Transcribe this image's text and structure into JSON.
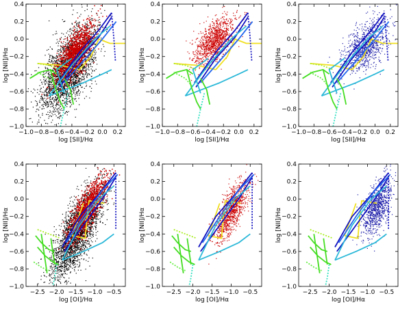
{
  "figure": {
    "background": "#ffffff"
  },
  "colors": {
    "black_points": "#000000",
    "red_points": "#cc0000",
    "blue_points": "#1a1aa8",
    "yellow": "#f0e020",
    "cyan": "#2ab8d8",
    "dark_blue": "#1010c0",
    "mid_blue": "#2266ee",
    "green": "#44dd22",
    "yellow_green": "#aaee22",
    "lime": "#66ee44",
    "teal": "#33e0c0"
  },
  "chart_data": [
    {
      "type": "scatter",
      "panel": "top-left",
      "row": 0,
      "col": 0,
      "xlabel": "log [SII]/Hα",
      "ylabel": "log [NII]/Hα",
      "xlim": [
        -1.0,
        0.3
      ],
      "ylim": [
        -1.0,
        0.4
      ],
      "xticks": [
        -1.0,
        -0.8,
        -0.6,
        -0.4,
        -0.2,
        0.0,
        0.2
      ],
      "xtick_labels": [
        "−1.0",
        "−0.8",
        "−0.6",
        "−0.4",
        "−0.2",
        "0.0",
        "0.2"
      ],
      "yticks": [
        -1.0,
        -0.8,
        -0.6,
        -0.4,
        -0.2,
        0.0,
        0.2,
        0.4
      ],
      "ytick_labels": [
        "−1.0",
        "−0.8",
        "−0.6",
        "−0.4",
        "−0.2",
        "0.0",
        "0.2",
        "0.4"
      ],
      "scatter_layers": [
        {
          "color": "black_points",
          "count": 2600,
          "cx": -0.45,
          "cy": -0.35,
          "sx": 0.18,
          "sy": 0.25,
          "rho": 0.6,
          "size": 1.2,
          "seed": 11
        },
        {
          "color": "red_points",
          "count": 1300,
          "cx": -0.35,
          "cy": -0.15,
          "sx": 0.12,
          "sy": 0.16,
          "rho": 0.7,
          "size": 1.5,
          "seed": 12
        }
      ],
      "model_lines": "sii"
    },
    {
      "type": "scatter",
      "panel": "top-middle",
      "row": 0,
      "col": 1,
      "xlabel": "log [SII]/Hα",
      "ylabel": "log [NII]/Hα",
      "xlim": [
        -1.0,
        0.3
      ],
      "ylim": [
        -1.0,
        0.4
      ],
      "xticks": [
        -1.0,
        -0.8,
        -0.6,
        -0.4,
        -0.2,
        0.0,
        0.2
      ],
      "xtick_labels": [
        "−1.0",
        "−0.8",
        "−0.6",
        "−0.4",
        "−0.2",
        "0.0",
        "0.2"
      ],
      "yticks": [
        -1.0,
        -0.8,
        -0.6,
        -0.4,
        -0.2,
        0.0,
        0.2,
        0.4
      ],
      "ytick_labels": [
        "−1.0",
        "−0.8",
        "−0.6",
        "−0.4",
        "−0.2",
        "0.0",
        "0.2",
        "0.4"
      ],
      "scatter_layers": [
        {
          "color": "red_points",
          "count": 1100,
          "cx": -0.32,
          "cy": -0.02,
          "sx": 0.13,
          "sy": 0.14,
          "rho": 0.6,
          "size": 1.2,
          "seed": 21
        }
      ],
      "model_lines": "sii"
    },
    {
      "type": "scatter",
      "panel": "top-right",
      "row": 0,
      "col": 2,
      "xlabel": "log [SII]/Hα",
      "ylabel": "log [NII]/Hα",
      "xlim": [
        -1.0,
        0.3
      ],
      "ylim": [
        -1.0,
        0.4
      ],
      "xticks": [
        -1.0,
        -0.8,
        -0.6,
        -0.4,
        -0.2,
        0.0,
        0.2
      ],
      "xtick_labels": [
        "−1.0",
        "−0.8",
        "−0.6",
        "−0.4",
        "−0.2",
        "0.0",
        "0.2"
      ],
      "yticks": [
        -1.0,
        -0.8,
        -0.6,
        -0.4,
        -0.2,
        0.0,
        0.2,
        0.4
      ],
      "ytick_labels": [
        "−1.0",
        "−0.8",
        "−0.6",
        "−0.4",
        "−0.2",
        "0.0",
        "0.2",
        "0.4"
      ],
      "scatter_layers": [
        {
          "color": "blue_points",
          "count": 900,
          "cx": -0.12,
          "cy": -0.08,
          "sx": 0.15,
          "sy": 0.16,
          "rho": 0.55,
          "size": 1.2,
          "seed": 31
        }
      ],
      "model_lines": "sii"
    },
    {
      "type": "scatter",
      "panel": "bottom-left",
      "row": 1,
      "col": 0,
      "xlabel": "log [OI]/Hα",
      "ylabel": "log [NII]/Hα",
      "xlim": [
        -2.8,
        -0.2
      ],
      "ylim": [
        -1.0,
        0.4
      ],
      "xticks": [
        -2.5,
        -2.0,
        -1.5,
        -1.0,
        -0.5
      ],
      "xtick_labels": [
        "−2.5",
        "−2.0",
        "−1.5",
        "−1.0",
        "−0.5"
      ],
      "yticks": [
        -1.0,
        -0.8,
        -0.6,
        -0.4,
        -0.2,
        0.0,
        0.2,
        0.4
      ],
      "ytick_labels": [
        "−1.0",
        "−0.8",
        "−0.6",
        "−0.4",
        "−0.2",
        "0.0",
        "0.2",
        "0.4"
      ],
      "scatter_layers": [
        {
          "color": "black_points",
          "count": 2600,
          "cx": -1.45,
          "cy": -0.38,
          "sx": 0.33,
          "sy": 0.27,
          "rho": 0.75,
          "size": 1.2,
          "seed": 41
        },
        {
          "color": "red_points",
          "count": 1300,
          "cx": -1.2,
          "cy": -0.12,
          "sx": 0.25,
          "sy": 0.18,
          "rho": 0.8,
          "size": 1.5,
          "seed": 42
        }
      ],
      "model_lines": "oi"
    },
    {
      "type": "scatter",
      "panel": "bottom-middle",
      "row": 1,
      "col": 1,
      "xlabel": "log [OI]/Hα",
      "ylabel": "log [NII]/Hα",
      "xlim": [
        -2.8,
        -0.2
      ],
      "ylim": [
        -1.0,
        0.4
      ],
      "xticks": [
        -2.5,
        -2.0,
        -1.5,
        -1.0,
        -0.5
      ],
      "xtick_labels": [
        "−2.5",
        "−2.0",
        "−1.5",
        "−1.0",
        "−0.5"
      ],
      "yticks": [
        -1.0,
        -0.8,
        -0.6,
        -0.4,
        -0.2,
        0.0,
        0.2,
        0.4
      ],
      "ytick_labels": [
        "−1.0",
        "−0.8",
        "−0.6",
        "−0.4",
        "−0.2",
        "0.0",
        "0.2",
        "0.4"
      ],
      "scatter_layers": [
        {
          "color": "red_points",
          "count": 1000,
          "cx": -1.0,
          "cy": -0.15,
          "sx": 0.22,
          "sy": 0.17,
          "rho": 0.7,
          "size": 1.2,
          "seed": 51
        }
      ],
      "model_lines": "oi"
    },
    {
      "type": "scatter",
      "panel": "bottom-right",
      "row": 1,
      "col": 2,
      "xlabel": "log [OI]/Hα",
      "ylabel": "log [NII]/Hα",
      "xlim": [
        -2.8,
        -0.2
      ],
      "ylim": [
        -1.0,
        0.4
      ],
      "xticks": [
        -2.5,
        -2.0,
        -1.5,
        -1.0,
        -0.5
      ],
      "xtick_labels": [
        "−2.5",
        "−2.0",
        "−1.5",
        "−1.0",
        "−0.5"
      ],
      "yticks": [
        -1.0,
        -0.8,
        -0.6,
        -0.4,
        -0.2,
        0.0,
        0.2,
        0.4
      ],
      "ytick_labels": [
        "−1.0",
        "−0.8",
        "−0.6",
        "−0.4",
        "−0.2",
        "0.0",
        "0.2",
        "0.4"
      ],
      "scatter_layers": [
        {
          "color": "blue_points",
          "count": 850,
          "cx": -0.75,
          "cy": -0.1,
          "sx": 0.2,
          "sy": 0.17,
          "rho": 0.6,
          "size": 1.2,
          "seed": 61
        }
      ],
      "model_lines": "oi"
    }
  ],
  "model_grids": {
    "sii": [
      {
        "color": "yellow",
        "dash": false,
        "points": [
          [
            -0.3,
            -0.35
          ],
          [
            -0.15,
            -0.2
          ],
          [
            -0.05,
            0.0
          ],
          [
            0.1,
            -0.05
          ],
          [
            0.35,
            -0.05
          ]
        ]
      },
      {
        "color": "yellow",
        "dash": false,
        "points": [
          [
            -0.3,
            -0.35
          ],
          [
            -0.55,
            -0.3
          ],
          [
            -0.85,
            -0.28
          ]
        ]
      },
      {
        "color": "yellow_green",
        "dash": true,
        "points": [
          [
            -0.85,
            -0.28
          ],
          [
            -0.7,
            -0.3
          ],
          [
            -0.55,
            -0.35
          ]
        ]
      },
      {
        "color": "dark_blue",
        "dash": false,
        "points": [
          [
            -0.58,
            -0.5
          ],
          [
            -0.3,
            -0.15
          ],
          [
            -0.05,
            0.1
          ],
          [
            0.12,
            0.3
          ]
        ]
      },
      {
        "color": "dark_blue",
        "dash": false,
        "points": [
          [
            -0.56,
            -0.55
          ],
          [
            -0.3,
            -0.22
          ],
          [
            -0.05,
            0.02
          ],
          [
            0.12,
            0.25
          ]
        ]
      },
      {
        "color": "mid_blue",
        "dash": false,
        "points": [
          [
            -0.5,
            -0.5
          ],
          [
            -0.25,
            -0.25
          ],
          [
            0.0,
            0.0
          ],
          [
            0.18,
            0.2
          ]
        ]
      },
      {
        "color": "cyan",
        "dash": false,
        "points": [
          [
            -0.7,
            -0.65
          ],
          [
            -0.4,
            -0.3
          ],
          [
            -0.1,
            0.0
          ],
          [
            0.1,
            0.15
          ]
        ]
      },
      {
        "color": "cyan",
        "dash": false,
        "points": [
          [
            -0.7,
            -0.65
          ],
          [
            -0.25,
            -0.5
          ],
          [
            0.0,
            -0.4
          ],
          [
            0.12,
            -0.35
          ]
        ]
      },
      {
        "color": "cyan",
        "dash": false,
        "points": [
          [
            -0.5,
            -0.62
          ],
          [
            -0.6,
            -0.35
          ],
          [
            -0.4,
            -0.22
          ]
        ]
      },
      {
        "color": "green",
        "dash": false,
        "points": [
          [
            -0.95,
            -0.45
          ],
          [
            -0.82,
            -0.38
          ],
          [
            -0.68,
            -0.35
          ],
          [
            -0.6,
            -0.4
          ]
        ]
      },
      {
        "color": "green",
        "dash": false,
        "points": [
          [
            -0.68,
            -0.35
          ],
          [
            -0.62,
            -0.55
          ],
          [
            -0.55,
            -0.72
          ],
          [
            -0.5,
            -0.8
          ]
        ]
      },
      {
        "color": "green",
        "dash": false,
        "points": [
          [
            -0.5,
            -0.45
          ],
          [
            -0.42,
            -0.58
          ],
          [
            -0.38,
            -0.75
          ]
        ]
      },
      {
        "color": "lime",
        "dash": true,
        "points": [
          [
            -0.85,
            -0.38
          ],
          [
            -0.7,
            -0.45
          ],
          [
            -0.6,
            -0.55
          ]
        ]
      },
      {
        "color": "teal",
        "dash": true,
        "points": [
          [
            -0.45,
            -0.62
          ],
          [
            -0.5,
            -0.8
          ],
          [
            -0.55,
            -1.0
          ]
        ]
      },
      {
        "color": "dark_blue",
        "dash": true,
        "points": [
          [
            0.12,
            0.3
          ],
          [
            0.15,
            0.0
          ],
          [
            0.17,
            -0.25
          ]
        ]
      }
    ],
    "oi": [
      {
        "color": "yellow",
        "dash": false,
        "points": [
          [
            -1.6,
            -0.42
          ],
          [
            -1.25,
            -0.45
          ],
          [
            -1.2,
            -0.2
          ],
          [
            -1.15,
            -0.02
          ],
          [
            -0.75,
            -0.05
          ]
        ]
      },
      {
        "color": "yellow",
        "dash": false,
        "points": [
          [
            -1.6,
            -0.42
          ],
          [
            -1.5,
            -0.3
          ],
          [
            -1.3,
            -0.05
          ]
        ]
      },
      {
        "color": "yellow_green",
        "dash": true,
        "points": [
          [
            -2.5,
            -0.35
          ],
          [
            -2.2,
            -0.4
          ],
          [
            -1.9,
            -0.45
          ]
        ]
      },
      {
        "color": "dark_blue",
        "dash": false,
        "points": [
          [
            -1.85,
            -0.55
          ],
          [
            -1.4,
            -0.2
          ],
          [
            -0.9,
            0.05
          ],
          [
            -0.45,
            0.3
          ]
        ]
      },
      {
        "color": "dark_blue",
        "dash": false,
        "points": [
          [
            -1.8,
            -0.6
          ],
          [
            -1.3,
            -0.3
          ],
          [
            -0.8,
            0.0
          ],
          [
            -0.45,
            0.25
          ]
        ]
      },
      {
        "color": "mid_blue",
        "dash": false,
        "points": [
          [
            -1.75,
            -0.5
          ],
          [
            -1.3,
            -0.2
          ],
          [
            -0.8,
            0.1
          ],
          [
            -0.4,
            0.28
          ]
        ]
      },
      {
        "color": "cyan",
        "dash": false,
        "points": [
          [
            -1.85,
            -0.7
          ],
          [
            -1.4,
            -0.3
          ],
          [
            -0.9,
            0.0
          ],
          [
            -0.5,
            0.15
          ]
        ]
      },
      {
        "color": "cyan",
        "dash": false,
        "points": [
          [
            -1.85,
            -0.7
          ],
          [
            -1.3,
            -0.6
          ],
          [
            -0.8,
            -0.5
          ],
          [
            -0.5,
            -0.4
          ]
        ]
      },
      {
        "color": "green",
        "dash": false,
        "points": [
          [
            -2.55,
            -0.42
          ],
          [
            -2.4,
            -0.5
          ],
          [
            -2.2,
            -0.58
          ],
          [
            -2.05,
            -0.6
          ]
        ]
      },
      {
        "color": "green",
        "dash": false,
        "points": [
          [
            -2.5,
            -0.55
          ],
          [
            -2.3,
            -0.65
          ],
          [
            -2.1,
            -0.72
          ],
          [
            -1.95,
            -0.75
          ]
        ]
      },
      {
        "color": "green",
        "dash": false,
        "points": [
          [
            -2.4,
            -0.4
          ],
          [
            -2.35,
            -0.55
          ],
          [
            -2.3,
            -0.7
          ],
          [
            -2.25,
            -0.85
          ]
        ]
      },
      {
        "color": "green",
        "dash": false,
        "points": [
          [
            -2.15,
            -0.45
          ],
          [
            -2.1,
            -0.6
          ],
          [
            -2.05,
            -0.75
          ]
        ]
      },
      {
        "color": "lime",
        "dash": true,
        "points": [
          [
            -2.6,
            -0.72
          ],
          [
            -2.4,
            -0.78
          ],
          [
            -2.2,
            -0.82
          ]
        ]
      },
      {
        "color": "teal",
        "dash": true,
        "points": [
          [
            -2.0,
            -0.75
          ],
          [
            -2.05,
            -0.9
          ],
          [
            -2.1,
            -1.0
          ]
        ]
      },
      {
        "color": "dark_blue",
        "dash": true,
        "points": [
          [
            -0.45,
            0.3
          ],
          [
            -0.45,
            -0.1
          ],
          [
            -0.45,
            -0.35
          ]
        ]
      }
    ]
  }
}
